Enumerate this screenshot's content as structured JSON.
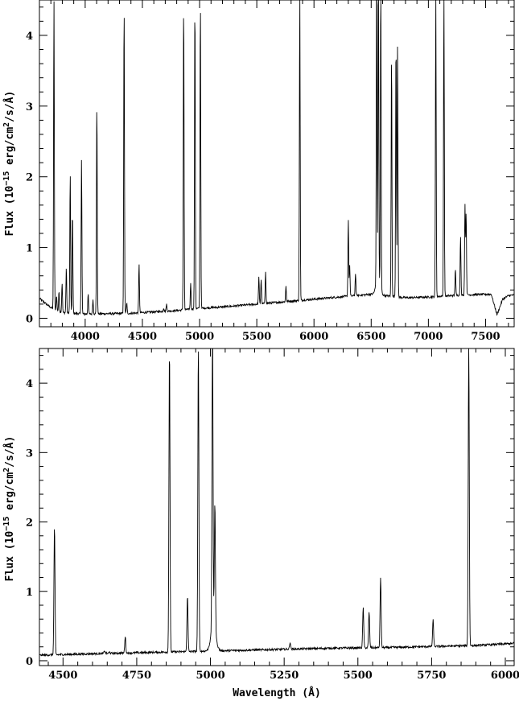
{
  "chart_data": [
    {
      "type": "line",
      "xlabel": "",
      "ylabel": "Flux (10^-15 erg/cm2/s/Å)",
      "ylabel_parts": {
        "pre": "Flux (10",
        "exp": "−15",
        "mid": " erg/cm",
        "exp2": "2",
        "post": "/s/Å)"
      },
      "xlim": [
        3600,
        7750
      ],
      "ylim": [
        -0.12,
        4.5
      ],
      "xticks": [
        4000,
        4500,
        5000,
        5500,
        6000,
        6500,
        7000,
        7500
      ],
      "yticks": [
        0,
        1,
        2,
        3,
        4
      ],
      "continuum": {
        "x": [
          3600,
          3700,
          3800,
          4000,
          4400,
          4800,
          5000,
          5200,
          5500,
          6000,
          6500,
          6800,
          7000,
          7300,
          7550,
          7600,
          7650,
          7700,
          7750
        ],
        "y": [
          0.28,
          0.15,
          0.08,
          0.06,
          0.07,
          0.11,
          0.14,
          0.16,
          0.2,
          0.27,
          0.34,
          0.29,
          0.3,
          0.33,
          0.34,
          0.05,
          0.27,
          0.32,
          0.33
        ]
      },
      "lines": [
        {
          "x": 3727,
          "peak": 4.5
        },
        {
          "x": 3750,
          "peak": 0.3
        },
        {
          "x": 3771,
          "peak": 0.38
        },
        {
          "x": 3798,
          "peak": 0.52
        },
        {
          "x": 3835,
          "peak": 0.75
        },
        {
          "x": 3869,
          "peak": 2.08
        },
        {
          "x": 3889,
          "peak": 1.55
        },
        {
          "x": 3968,
          "peak": 2.3
        },
        {
          "x": 4026,
          "peak": 0.4
        },
        {
          "x": 4068,
          "peak": 0.3
        },
        {
          "x": 4102,
          "peak": 3.1
        },
        {
          "x": 4340,
          "peak": 4.5
        },
        {
          "x": 4363,
          "peak": 0.25
        },
        {
          "x": 4471,
          "peak": 0.8
        },
        {
          "x": 4686,
          "peak": 0.15
        },
        {
          "x": 4711,
          "peak": 0.2
        },
        {
          "x": 4861,
          "peak": 4.5
        },
        {
          "x": 4922,
          "peak": 0.48
        },
        {
          "x": 4959,
          "peak": 4.5
        },
        {
          "x": 5007,
          "peak": 4.5
        },
        {
          "x": 5518,
          "peak": 0.48
        },
        {
          "x": 5538,
          "peak": 0.45
        },
        {
          "x": 5577,
          "peak": 0.55
        },
        {
          "x": 5755,
          "peak": 0.32
        },
        {
          "x": 5876,
          "peak": 4.5
        },
        {
          "x": 6300,
          "peak": 1.2
        },
        {
          "x": 6312,
          "peak": 0.55
        },
        {
          "x": 6363,
          "peak": 0.42
        },
        {
          "x": 6548,
          "peak": 4.5
        },
        {
          "x": 6563,
          "peak": 4.5
        },
        {
          "x": 6584,
          "peak": 4.5
        },
        {
          "x": 6678,
          "peak": 3.55
        },
        {
          "x": 6717,
          "peak": 3.8
        },
        {
          "x": 6731,
          "peak": 3.72
        },
        {
          "x": 7065,
          "peak": 4.4
        },
        {
          "x": 7136,
          "peak": 4.5
        },
        {
          "x": 7236,
          "peak": 0.48
        },
        {
          "x": 7281,
          "peak": 0.95
        },
        {
          "x": 7320,
          "peak": 1.38
        },
        {
          "x": 7330,
          "peak": 1.28
        }
      ]
    },
    {
      "type": "line",
      "xlabel": "Wavelength (Å)",
      "ylabel": "Flux (10^-15 erg/cm2/s/Å)",
      "ylabel_parts": {
        "pre": "Flux (10",
        "exp": "−15",
        "mid": " erg/cm",
        "exp2": "2",
        "post": "/s/Å)"
      },
      "xlim": [
        4420,
        6030
      ],
      "ylim": [
        -0.07,
        4.5
      ],
      "xticks": [
        4500,
        4750,
        5000,
        5250,
        5500,
        5750,
        6000
      ],
      "yticks": [
        0,
        1,
        2,
        3,
        4
      ],
      "continuum": {
        "x": [
          4420,
          4600,
          4800,
          4900,
          5000,
          5200,
          5400,
          5600,
          5800,
          5900,
          6030
        ],
        "y": [
          0.08,
          0.1,
          0.12,
          0.13,
          0.14,
          0.16,
          0.18,
          0.19,
          0.21,
          0.22,
          0.25
        ]
      },
      "lines": [
        {
          "x": 4471,
          "peak": 1.96
        },
        {
          "x": 4641,
          "peak": 0.14
        },
        {
          "x": 4658,
          "peak": 0.12
        },
        {
          "x": 4711,
          "peak": 0.34
        },
        {
          "x": 4861,
          "peak": 4.5
        },
        {
          "x": 4922,
          "peak": 0.9
        },
        {
          "x": 4959,
          "peak": 4.5
        },
        {
          "x": 5007,
          "peak": 4.5
        },
        {
          "x": 5015,
          "peak": 1.96
        },
        {
          "x": 5270,
          "peak": 0.2
        },
        {
          "x": 5518,
          "peak": 0.68
        },
        {
          "x": 5538,
          "peak": 0.62
        },
        {
          "x": 5577,
          "peak": 1.12
        },
        {
          "x": 5755,
          "peak": 0.48
        },
        {
          "x": 5876,
          "peak": 4.5
        }
      ]
    }
  ]
}
